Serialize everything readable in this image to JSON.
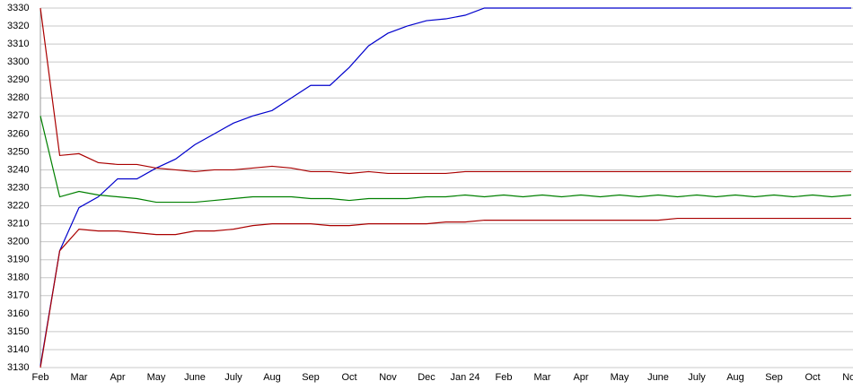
{
  "chart_data": {
    "type": "line",
    "categories": [
      "Feb",
      null,
      "Mar",
      null,
      "Apr",
      null,
      "May",
      null,
      "June",
      null,
      "July",
      null,
      "Aug",
      null,
      "Sep",
      null,
      "Oct",
      null,
      "Nov",
      null,
      "Dec",
      null,
      "Jan 24",
      null,
      "Feb",
      null,
      "Mar",
      null,
      "Apr",
      null,
      "May",
      null,
      "June",
      null,
      "July",
      null,
      "Aug",
      null,
      "Sep",
      null,
      "Oct",
      null,
      "Nov"
    ],
    "series": [
      {
        "color": "#0000cc",
        "values": [
          3131,
          3195,
          3219,
          3225,
          3235,
          3235,
          3241,
          3246,
          3254,
          3260,
          3266,
          3270,
          3273,
          3280,
          3287,
          3287,
          3297,
          3309,
          3316,
          3320,
          3323,
          3324,
          3326,
          3330,
          3330,
          3330,
          3330,
          3330,
          3330,
          3330,
          3330,
          3330,
          3330,
          3330,
          3330,
          3330,
          3330,
          3330,
          3330,
          3330,
          3330,
          3330,
          3330
        ]
      },
      {
        "color": "#aa0000",
        "values": [
          3330,
          3248,
          3249,
          3244,
          3243,
          3243,
          3241,
          3240,
          3239,
          3240,
          3240,
          3241,
          3242,
          3241,
          3239,
          3239,
          3238,
          3239,
          3238,
          3238,
          3238,
          3238,
          3239,
          3239,
          3239,
          3239,
          3239,
          3239,
          3239,
          3239,
          3239,
          3239,
          3239,
          3239,
          3239,
          3239,
          3239,
          3239,
          3239,
          3239,
          3239,
          3239,
          3239
        ]
      },
      {
        "color": "#008000",
        "values": [
          3270,
          3225,
          3228,
          3226,
          3225,
          3224,
          3222,
          3222,
          3222,
          3223,
          3224,
          3225,
          3225,
          3225,
          3224,
          3224,
          3223,
          3224,
          3224,
          3224,
          3225,
          3225,
          3226,
          3225,
          3226,
          3225,
          3226,
          3225,
          3226,
          3225,
          3226,
          3225,
          3226,
          3225,
          3226,
          3225,
          3226,
          3225,
          3226,
          3225,
          3226,
          3225,
          3226
        ]
      },
      {
        "color": "#aa0000",
        "values": [
          3130,
          3195,
          3207,
          3206,
          3206,
          3205,
          3204,
          3204,
          3206,
          3206,
          3207,
          3209,
          3210,
          3210,
          3210,
          3209,
          3209,
          3210,
          3210,
          3210,
          3210,
          3211,
          3211,
          3212,
          3212,
          3212,
          3212,
          3212,
          3212,
          3212,
          3212,
          3212,
          3212,
          3213,
          3213,
          3213,
          3213,
          3213,
          3213,
          3213,
          3213,
          3213,
          3213
        ]
      }
    ],
    "ylim": [
      3130,
      3330
    ],
    "yticks": [
      3130,
      3140,
      3150,
      3160,
      3170,
      3180,
      3190,
      3200,
      3210,
      3220,
      3230,
      3240,
      3250,
      3260,
      3270,
      3280,
      3290,
      3300,
      3310,
      3320,
      3330
    ],
    "grid": true
  }
}
